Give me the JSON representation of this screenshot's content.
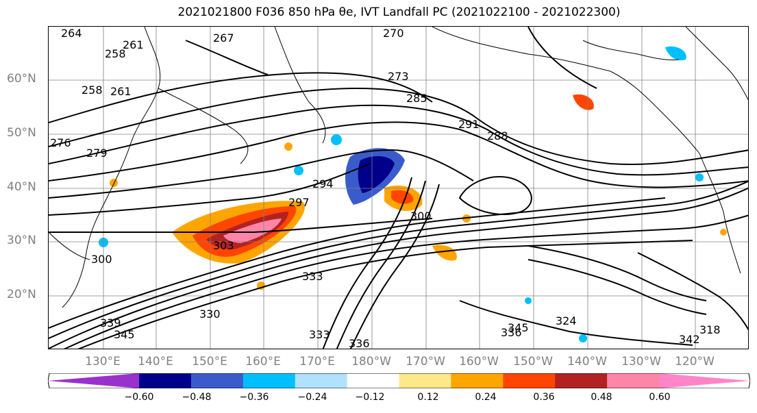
{
  "title": "2021021800 F036 850 hPa θe, IVT Landfall PC (2021022100 - 2021022300)",
  "latitude_labels": [
    "60°N",
    "50°N",
    "40°N",
    "30°N",
    "20°N"
  ],
  "longitude_labels": [
    "130°E",
    "140°E",
    "150°E",
    "160°E",
    "170°E",
    "180°W",
    "170°W",
    "160°W",
    "150°W",
    "140°W",
    "130°W",
    "120°W"
  ],
  "contour_labels": [
    "264",
    "261",
    "258",
    "267",
    "270",
    "273",
    "258",
    "261",
    "276",
    "279",
    "285",
    "291",
    "288",
    "294",
    "297",
    "300",
    "303",
    "300",
    "333",
    "339",
    "345",
    "330",
    "324",
    "318",
    "336",
    "345",
    "342",
    "333",
    "336"
  ],
  "colorbar": {
    "ticks": [
      "−0.60",
      "−0.48",
      "−0.36",
      "−0.24",
      "−0.12",
      "0.12",
      "0.24",
      "0.36",
      "0.48",
      "0.60"
    ],
    "colors": [
      "#9932cc",
      "#00008b",
      "#3a5bcc",
      "#00bfff",
      "#b0e2ff",
      "#ffffff",
      "#ffe88a",
      "#ffa500",
      "#ff4500",
      "#b22222",
      "#ff85a8",
      "#ff85c8"
    ]
  },
  "map_colors": {
    "contour": "#000000",
    "coast": "#000000",
    "grid": "#808080",
    "axis_labels": "#808080"
  }
}
